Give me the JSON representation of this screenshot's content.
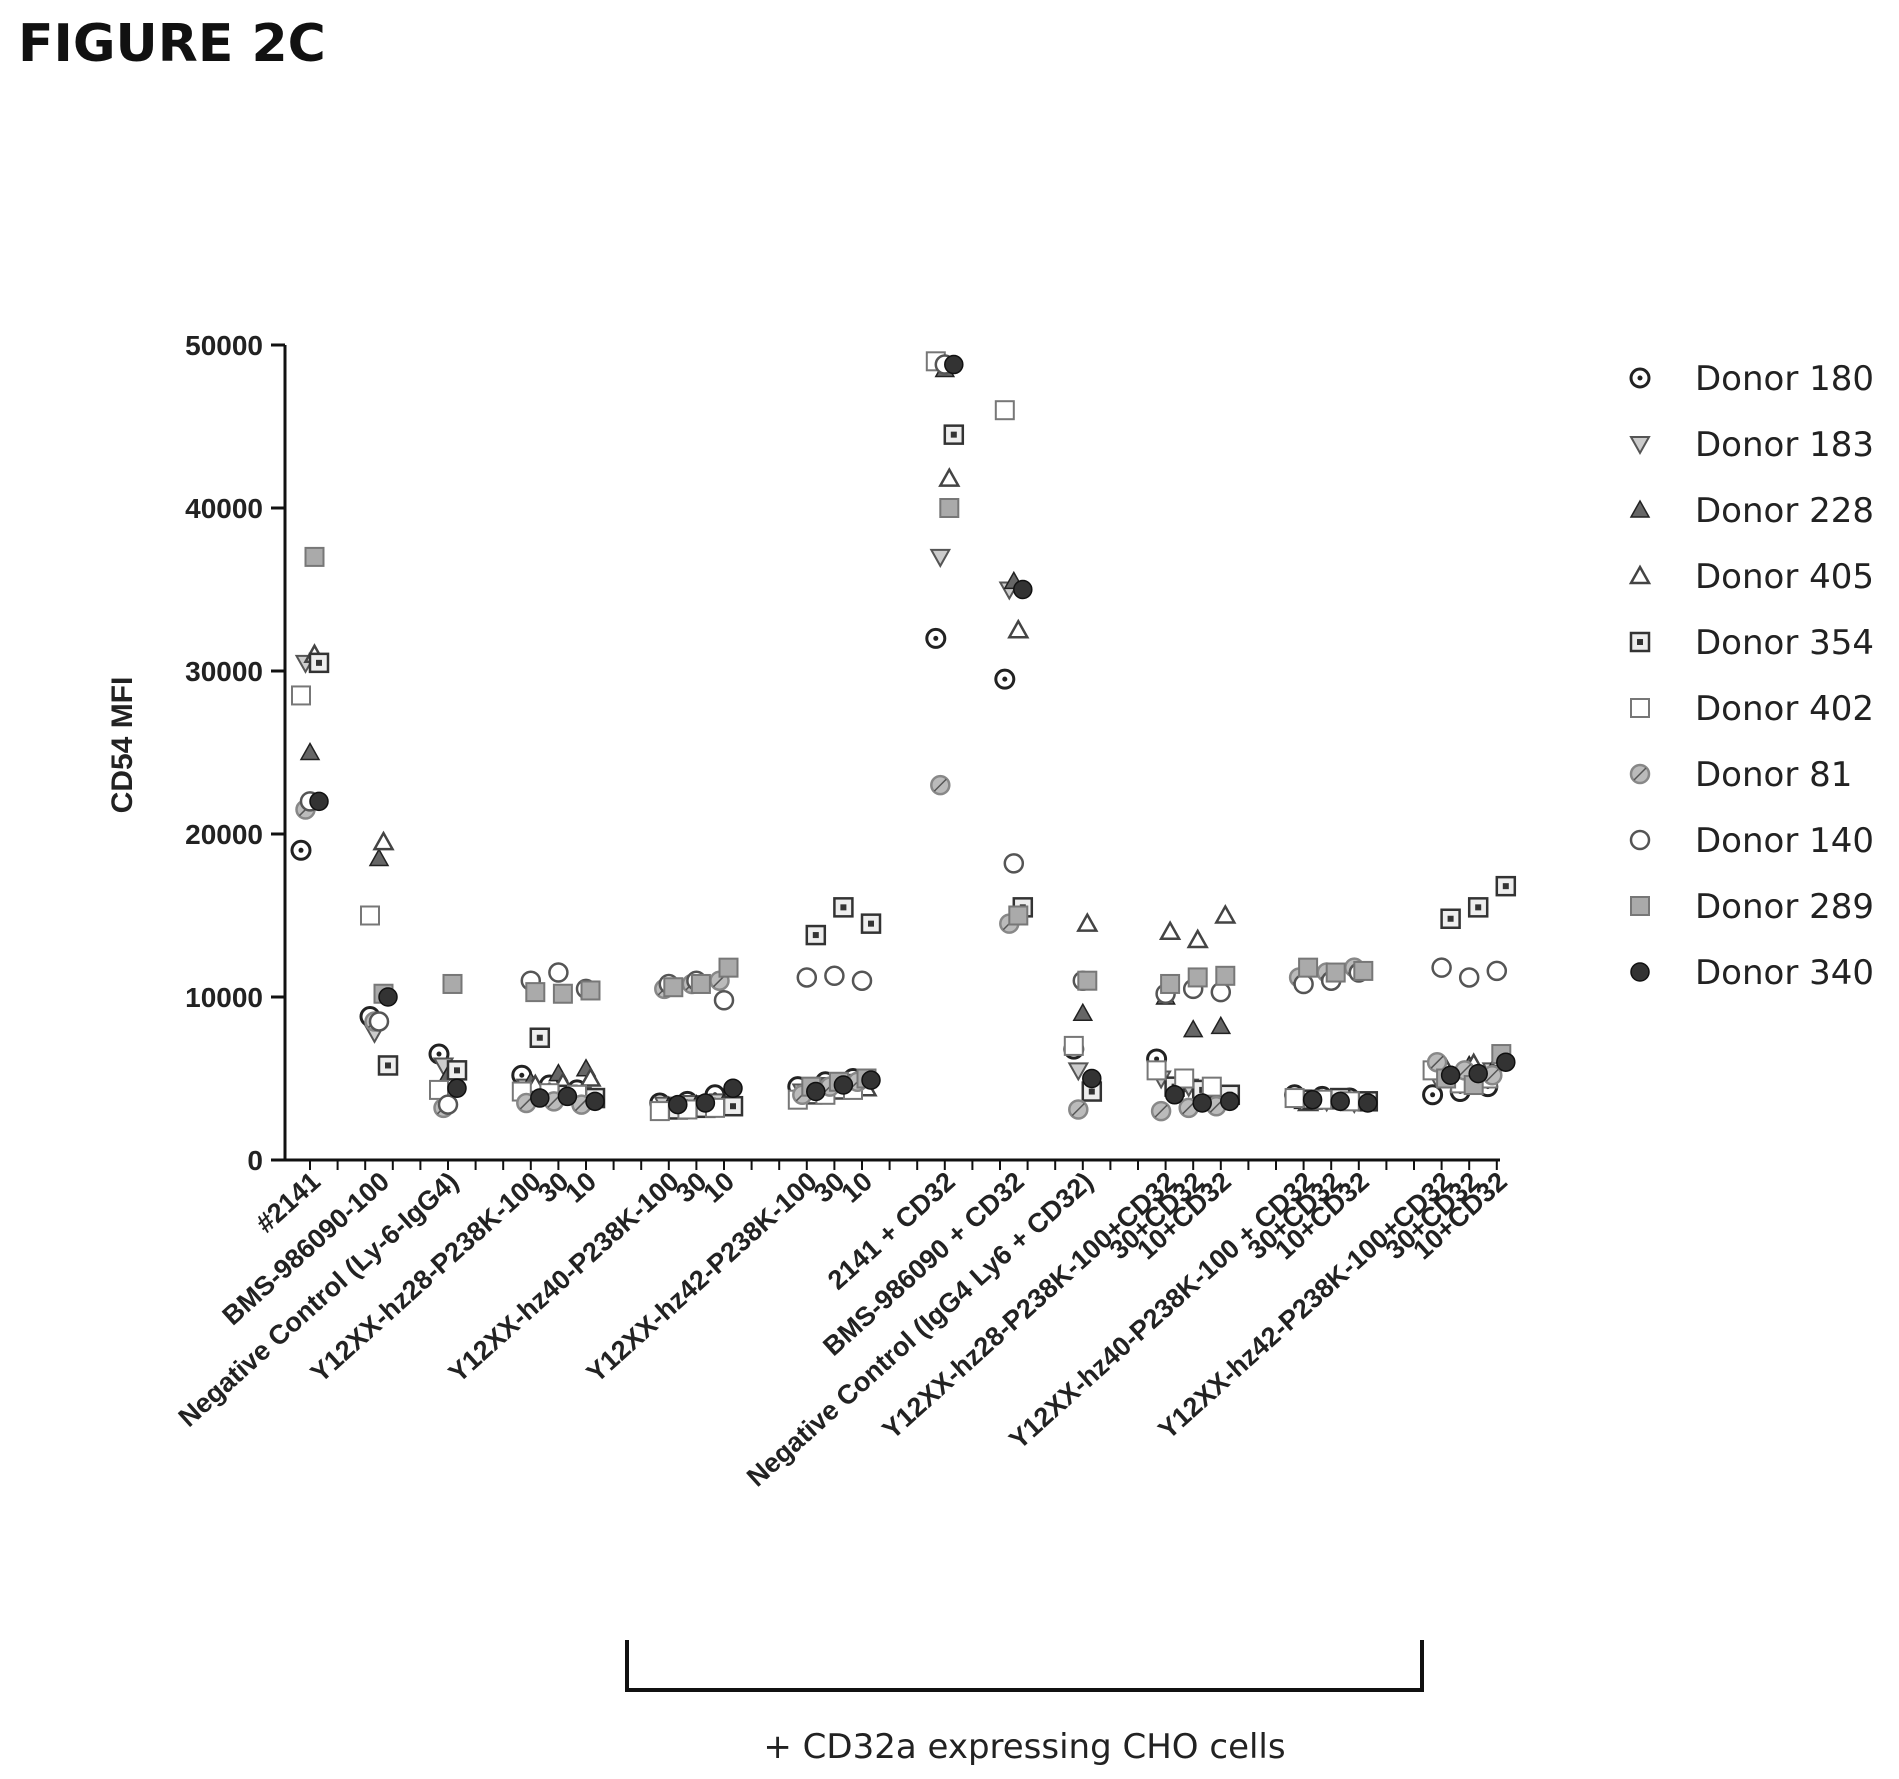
{
  "figure_label": "FIGURE 2C",
  "chart_data": {
    "type": "scatter",
    "ylabel": "CD54 MFI",
    "ylim": [
      0,
      50000
    ],
    "yticks": [
      0,
      10000,
      20000,
      30000,
      40000,
      50000
    ],
    "ytick_labels": [
      "0",
      "10000",
      "20000",
      "30000",
      "40000",
      "50000"
    ],
    "categories": [
      "#2141",
      "BMS-986090-100",
      "Negative Control (Ly-6-IgG4)",
      "Y12XX-hz28-P238K-100",
      "30",
      "10",
      "Y12XX-hz40-P238K-100",
      "30",
      "10",
      "Y12XX-hz42-P238K-100",
      "30",
      "10",
      "2141 + CD32",
      "BMS-986090 + CD32",
      "Negative Control (IgG4 Ly6 + CD32)",
      "Y12XX-hz28-P238K-100+CD32",
      "30+CD32",
      "10+CD32",
      "Y12XX-hz40-P238K-100 + CD32",
      "30+CD32",
      "10+CD32",
      "Y12XX-hz42-P238K-100+CD32",
      "30+CD32",
      "10+CD32"
    ],
    "category_x_pos": [
      0,
      2.5,
      5,
      8,
      9,
      10,
      13,
      14,
      15,
      18,
      19,
      20,
      23,
      25.5,
      28,
      31,
      32,
      33,
      36,
      37,
      38,
      41,
      42,
      43
    ],
    "bracket": {
      "from_category": 8,
      "to_category": 22,
      "label": "+  CD32a expressing CHO cells"
    },
    "legend_position": "right",
    "series": [
      {
        "name": "Donor 180",
        "marker": "circle-dot",
        "color": "#222222",
        "values": [
          19000,
          8800,
          6500,
          5200,
          4600,
          4300,
          3500,
          3600,
          4000,
          4500,
          4800,
          5000,
          32000,
          29500,
          6800,
          6200,
          4800,
          4200,
          4000,
          3900,
          3800,
          4000,
          4200,
          4500
        ]
      },
      {
        "name": "Donor 183",
        "marker": "triangle-down",
        "color": "#555555",
        "values": [
          30500,
          7800,
          5800,
          4500,
          4200,
          4000,
          3400,
          3500,
          3600,
          4200,
          4600,
          4800,
          37000,
          35000,
          5500,
          5000,
          4500,
          4000,
          3700,
          3600,
          3500,
          5000,
          5200,
          5500
        ]
      },
      {
        "name": "Donor 228",
        "marker": "triangle-filled",
        "color": "#666666",
        "values": [
          25000,
          18500,
          5200,
          4800,
          5300,
          5600,
          3300,
          3400,
          3500,
          4000,
          4400,
          4600,
          48500,
          35500,
          9000,
          10000,
          8000,
          8200,
          3600,
          3700,
          3600,
          5500,
          5800,
          6000
        ]
      },
      {
        "name": "Donor 405",
        "marker": "triangle-open",
        "color": "#444444",
        "values": [
          31000,
          19500,
          4800,
          4600,
          4700,
          5000,
          3200,
          3300,
          3400,
          3900,
          4200,
          4400,
          41800,
          32500,
          14500,
          14000,
          13500,
          15000,
          3500,
          3600,
          3500,
          5600,
          5900,
          6200
        ]
      },
      {
        "name": "Donor 354",
        "marker": "square-dot",
        "color": "#333333",
        "values": [
          30500,
          5800,
          5500,
          7500,
          4000,
          3800,
          3100,
          3200,
          3300,
          13800,
          15500,
          14500,
          44500,
          15500,
          4200,
          4500,
          4300,
          4000,
          3700,
          3800,
          3600,
          14800,
          15500,
          16800
        ]
      },
      {
        "name": "Donor 402",
        "marker": "square-open",
        "color": "#777777",
        "values": [
          28500,
          15000,
          4300,
          4200,
          4100,
          4000,
          3000,
          3100,
          3200,
          3700,
          4000,
          4300,
          49000,
          46000,
          7000,
          5500,
          5000,
          4500,
          3800,
          3700,
          3600,
          5500,
          4700,
          5000
        ]
      },
      {
        "name": "Donor 81",
        "marker": "circle-hatched",
        "color": "#888888",
        "values": [
          21500,
          8500,
          3200,
          3500,
          3600,
          3400,
          10500,
          10800,
          11000,
          4000,
          4500,
          4800,
          23000,
          14500,
          3100,
          3000,
          3200,
          3300,
          11200,
          11500,
          11800,
          6000,
          5500,
          5200
        ]
      },
      {
        "name": "Donor 140",
        "marker": "circle-open",
        "color": "#555555",
        "values": [
          22000,
          8500,
          3400,
          11000,
          11500,
          10500,
          10800,
          11000,
          9800,
          11200,
          11300,
          11000,
          48800,
          18200,
          11000,
          10200,
          10500,
          10300,
          10800,
          11000,
          11500,
          11800,
          11200,
          11600
        ]
      },
      {
        "name": "Donor 289",
        "marker": "square-filled",
        "color": "#777777",
        "values": [
          37000,
          10200,
          10800,
          10300,
          10200,
          10400,
          10600,
          10800,
          11800,
          4500,
          4800,
          5000,
          40000,
          15000,
          11000,
          10800,
          11200,
          11300,
          11800,
          11500,
          11600,
          5000,
          4600,
          6500
        ]
      },
      {
        "name": "Donor 340",
        "marker": "circle-filled",
        "color": "#333333",
        "values": [
          22000,
          10000,
          4400,
          3800,
          3900,
          3600,
          3400,
          3500,
          4400,
          4200,
          4600,
          4900,
          48800,
          35000,
          5000,
          4000,
          3500,
          3600,
          3700,
          3600,
          3500,
          5200,
          5300,
          6000
        ]
      }
    ]
  }
}
